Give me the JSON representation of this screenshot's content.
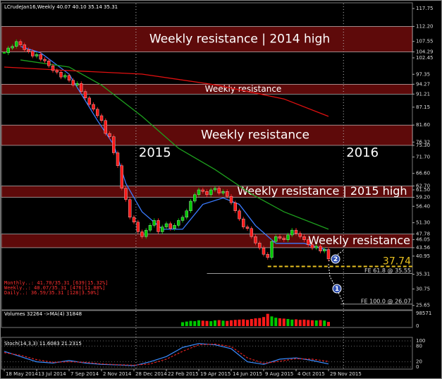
{
  "header": "LCrudeJan16,Weekly  40.07 40.10 35.14 35.31",
  "info_lines": [
    "Monthly..: 41.70/35.31 [639|15.32%]",
    "Weekly..: 40.07/35.31 [476|11.88%]",
    "Daily..: 36.59/35.31 [128|3.50%]"
  ],
  "chart_data": {
    "type": "candlestick",
    "values": [
      104.0,
      105.5,
      106.0,
      107.5,
      106.5,
      105.0,
      104.5,
      103.0,
      103.5,
      102.0,
      101.5,
      100.0,
      98.5,
      98.0,
      96.5,
      97.0,
      95.5,
      94.0,
      94.5,
      92.0,
      90.0,
      88.0,
      86.5,
      84.5,
      83.0,
      79.0,
      78.0,
      73.0,
      69.0,
      62.0,
      58.5,
      53.0,
      51.5,
      48.5,
      47.0,
      49.0,
      50.5,
      52.0,
      48.5,
      50.0,
      51.0,
      49.5,
      50.5,
      52.0,
      53.0,
      55.0,
      58.0,
      60.0,
      61.5,
      61.0,
      60.0,
      61.5,
      62.0,
      60.5,
      61.0,
      59.5,
      57.5,
      55.0,
      52.5,
      50.0,
      49.5,
      47.0,
      45.0,
      43.5,
      41.5,
      40.5,
      45.5,
      47.0,
      46.5,
      46.0,
      47.5,
      49.0,
      48.0,
      47.0,
      46.0,
      44.5,
      43.5,
      44.0,
      42.5,
      43.0,
      40.07
    ],
    "up_color": "#00c800",
    "down_color": "#ff1a1a",
    "xlim": [
      -0.7,
      100.7
    ],
    "xticks": [
      {
        "value": 0,
        "label": "18 May 2014"
      },
      {
        "value": 8,
        "label": "13 Jul 2014"
      },
      {
        "value": 16,
        "label": "7 Sep 2014"
      },
      {
        "value": 24,
        "label": "2 Nov 2014"
      },
      {
        "value": 32,
        "label": "28 Dec 2014"
      },
      {
        "value": 40,
        "label": "22 Feb 2015"
      },
      {
        "value": 48,
        "label": "19 Apr 2015"
      },
      {
        "value": 56,
        "label": "14 Jun 2015"
      },
      {
        "value": 64,
        "label": "9 Aug 2015"
      },
      {
        "value": 72,
        "label": "4 Oct 2015"
      },
      {
        "value": 80,
        "label": "29 Nov 2015"
      }
    ],
    "ylim": [
      24.5,
      119.3
    ],
    "yticks": [
      {
        "value": 117.75,
        "label": "117.75"
      },
      {
        "value": 112.2,
        "label": "112.20"
      },
      {
        "value": 107.55,
        "label": "107.55"
      },
      {
        "value": 104.29,
        "label": "104.29"
      },
      {
        "value": 102.45,
        "label": "102.45"
      },
      {
        "value": 97.35,
        "label": "97.35"
      },
      {
        "value": 94.27,
        "label": "94.27"
      },
      {
        "value": 91.21,
        "label": "91.21"
      },
      {
        "value": 87.15,
        "label": "87.15"
      },
      {
        "value": 81.6,
        "label": "81.60"
      },
      {
        "value": 76.32,
        "label": "76.32"
      },
      {
        "value": 75.3,
        "label": "75.30"
      },
      {
        "value": 71.7,
        "label": "71.70"
      },
      {
        "value": 66.6,
        "label": "66.60"
      },
      {
        "value": 62.7,
        "label": "62.70"
      },
      {
        "value": 61.5,
        "label": "61.50"
      },
      {
        "value": 59.2,
        "label": "59.20"
      },
      {
        "value": 56.4,
        "label": "56.40"
      },
      {
        "value": 51.3,
        "label": "51.30"
      },
      {
        "value": 47.78,
        "label": "47.78"
      },
      {
        "value": 46.05,
        "label": "46.05"
      },
      {
        "value": 43.56,
        "label": "43.56"
      },
      {
        "value": 40.95,
        "label": "40.95"
      },
      {
        "value": 35.31,
        "label": "35.31"
      },
      {
        "value": 30.75,
        "label": "30.75"
      },
      {
        "value": 25.65,
        "label": "25.65"
      }
    ],
    "zones": [
      {
        "label": "Weekly resistance | 2014 high",
        "from": 104.29,
        "to": 112.2
      },
      {
        "label": "Weekly resistance",
        "from": 91.21,
        "to": 94.27
      },
      {
        "label": "Weekly resistance",
        "from": 75.3,
        "to": 81.6
      },
      {
        "label": "Weekly resistance | 2015 high",
        "from": 59.2,
        "to": 62.7
      },
      {
        "label": "Weekly resistance",
        "from": 43.56,
        "to": 47.78
      }
    ],
    "year_markers": [
      {
        "value": 32.5,
        "label": "2015"
      },
      {
        "value": 83.7,
        "label": "2016"
      }
    ],
    "levels": [
      {
        "label": "37.74",
        "value": 37.74,
        "x_from": 65,
        "color": "#e8c020"
      },
      {
        "label": "FE 61.8 @ 35.55",
        "value": 35.55,
        "x_from": 50,
        "color": "#9a9a9a"
      },
      {
        "label": "FE 100.0 @ 26.07",
        "value": 26.07,
        "x_from": 83,
        "color": "#9a9a9a"
      }
    ],
    "annotations": [
      "2",
      "1"
    ],
    "indicators": [
      {
        "color": "#3a7bff",
        "x": [
          4,
          9,
          16,
          23,
          27,
          30,
          34,
          39,
          44,
          49,
          54,
          58,
          62,
          67,
          74,
          80
        ],
        "values": [
          106,
          104,
          97.4,
          83,
          75.5,
          63.5,
          54.7,
          49.3,
          49.3,
          57,
          59,
          57,
          50.4,
          44.9,
          44.9,
          42.7
        ]
      },
      {
        "color": "#1ea01e",
        "x": [
          4,
          16,
          24,
          34,
          43,
          52,
          61,
          69,
          80
        ],
        "values": [
          101.8,
          99.6,
          94,
          84.3,
          74.4,
          67.8,
          60.2,
          54.7,
          49.3
        ]
      },
      {
        "color": "#e01010",
        "x": [
          0,
          16,
          34,
          52,
          69,
          80
        ],
        "values": [
          99.6,
          98.5,
          97.4,
          94.1,
          89.7,
          84.3
        ]
      }
    ],
    "volume": {
      "title": "Volumes 32264 ->MA(4) 31848",
      "ylim": [
        0,
        98571
      ],
      "yticks": [
        0,
        98571
      ],
      "x": [
        44,
        45,
        46,
        47,
        48,
        49,
        50,
        51,
        52,
        53,
        54,
        55,
        56,
        57,
        58,
        59,
        60,
        61,
        62,
        63,
        64,
        65,
        66,
        67,
        68,
        69,
        70,
        71,
        72,
        73,
        74,
        75,
        76,
        77,
        78,
        79,
        80
      ],
      "values": [
        30000,
        35000,
        40000,
        38000,
        45000,
        42000,
        40000,
        38000,
        44000,
        46000,
        42000,
        40000,
        45000,
        48000,
        50000,
        52000,
        48000,
        55000,
        60000,
        62000,
        70000,
        95000,
        75000,
        65000,
        60000,
        58000,
        55000,
        50000,
        52000,
        48000,
        50000,
        47000,
        45000,
        44000,
        46000,
        43000,
        32264
      ]
    },
    "stoch": {
      "title": "Stoch(14,3,3) 11.6083 21.2315",
      "ylim": [
        0,
        100
      ],
      "yticks": [
        0,
        20,
        80,
        100
      ],
      "x": [
        0,
        4,
        8,
        12,
        16,
        20,
        24,
        28,
        32,
        36,
        40,
        44,
        48,
        52,
        56,
        60,
        64,
        68,
        72,
        76,
        80
      ],
      "main": [
        60,
        40,
        20,
        15,
        25,
        15,
        10,
        8,
        5,
        20,
        40,
        75,
        90,
        85,
        70,
        20,
        10,
        30,
        35,
        25,
        11.6083
      ],
      "signal": [
        55,
        45,
        28,
        18,
        20,
        18,
        12,
        9,
        7,
        12,
        30,
        60,
        85,
        88,
        78,
        35,
        14,
        22,
        32,
        30,
        21.2315
      ]
    }
  }
}
